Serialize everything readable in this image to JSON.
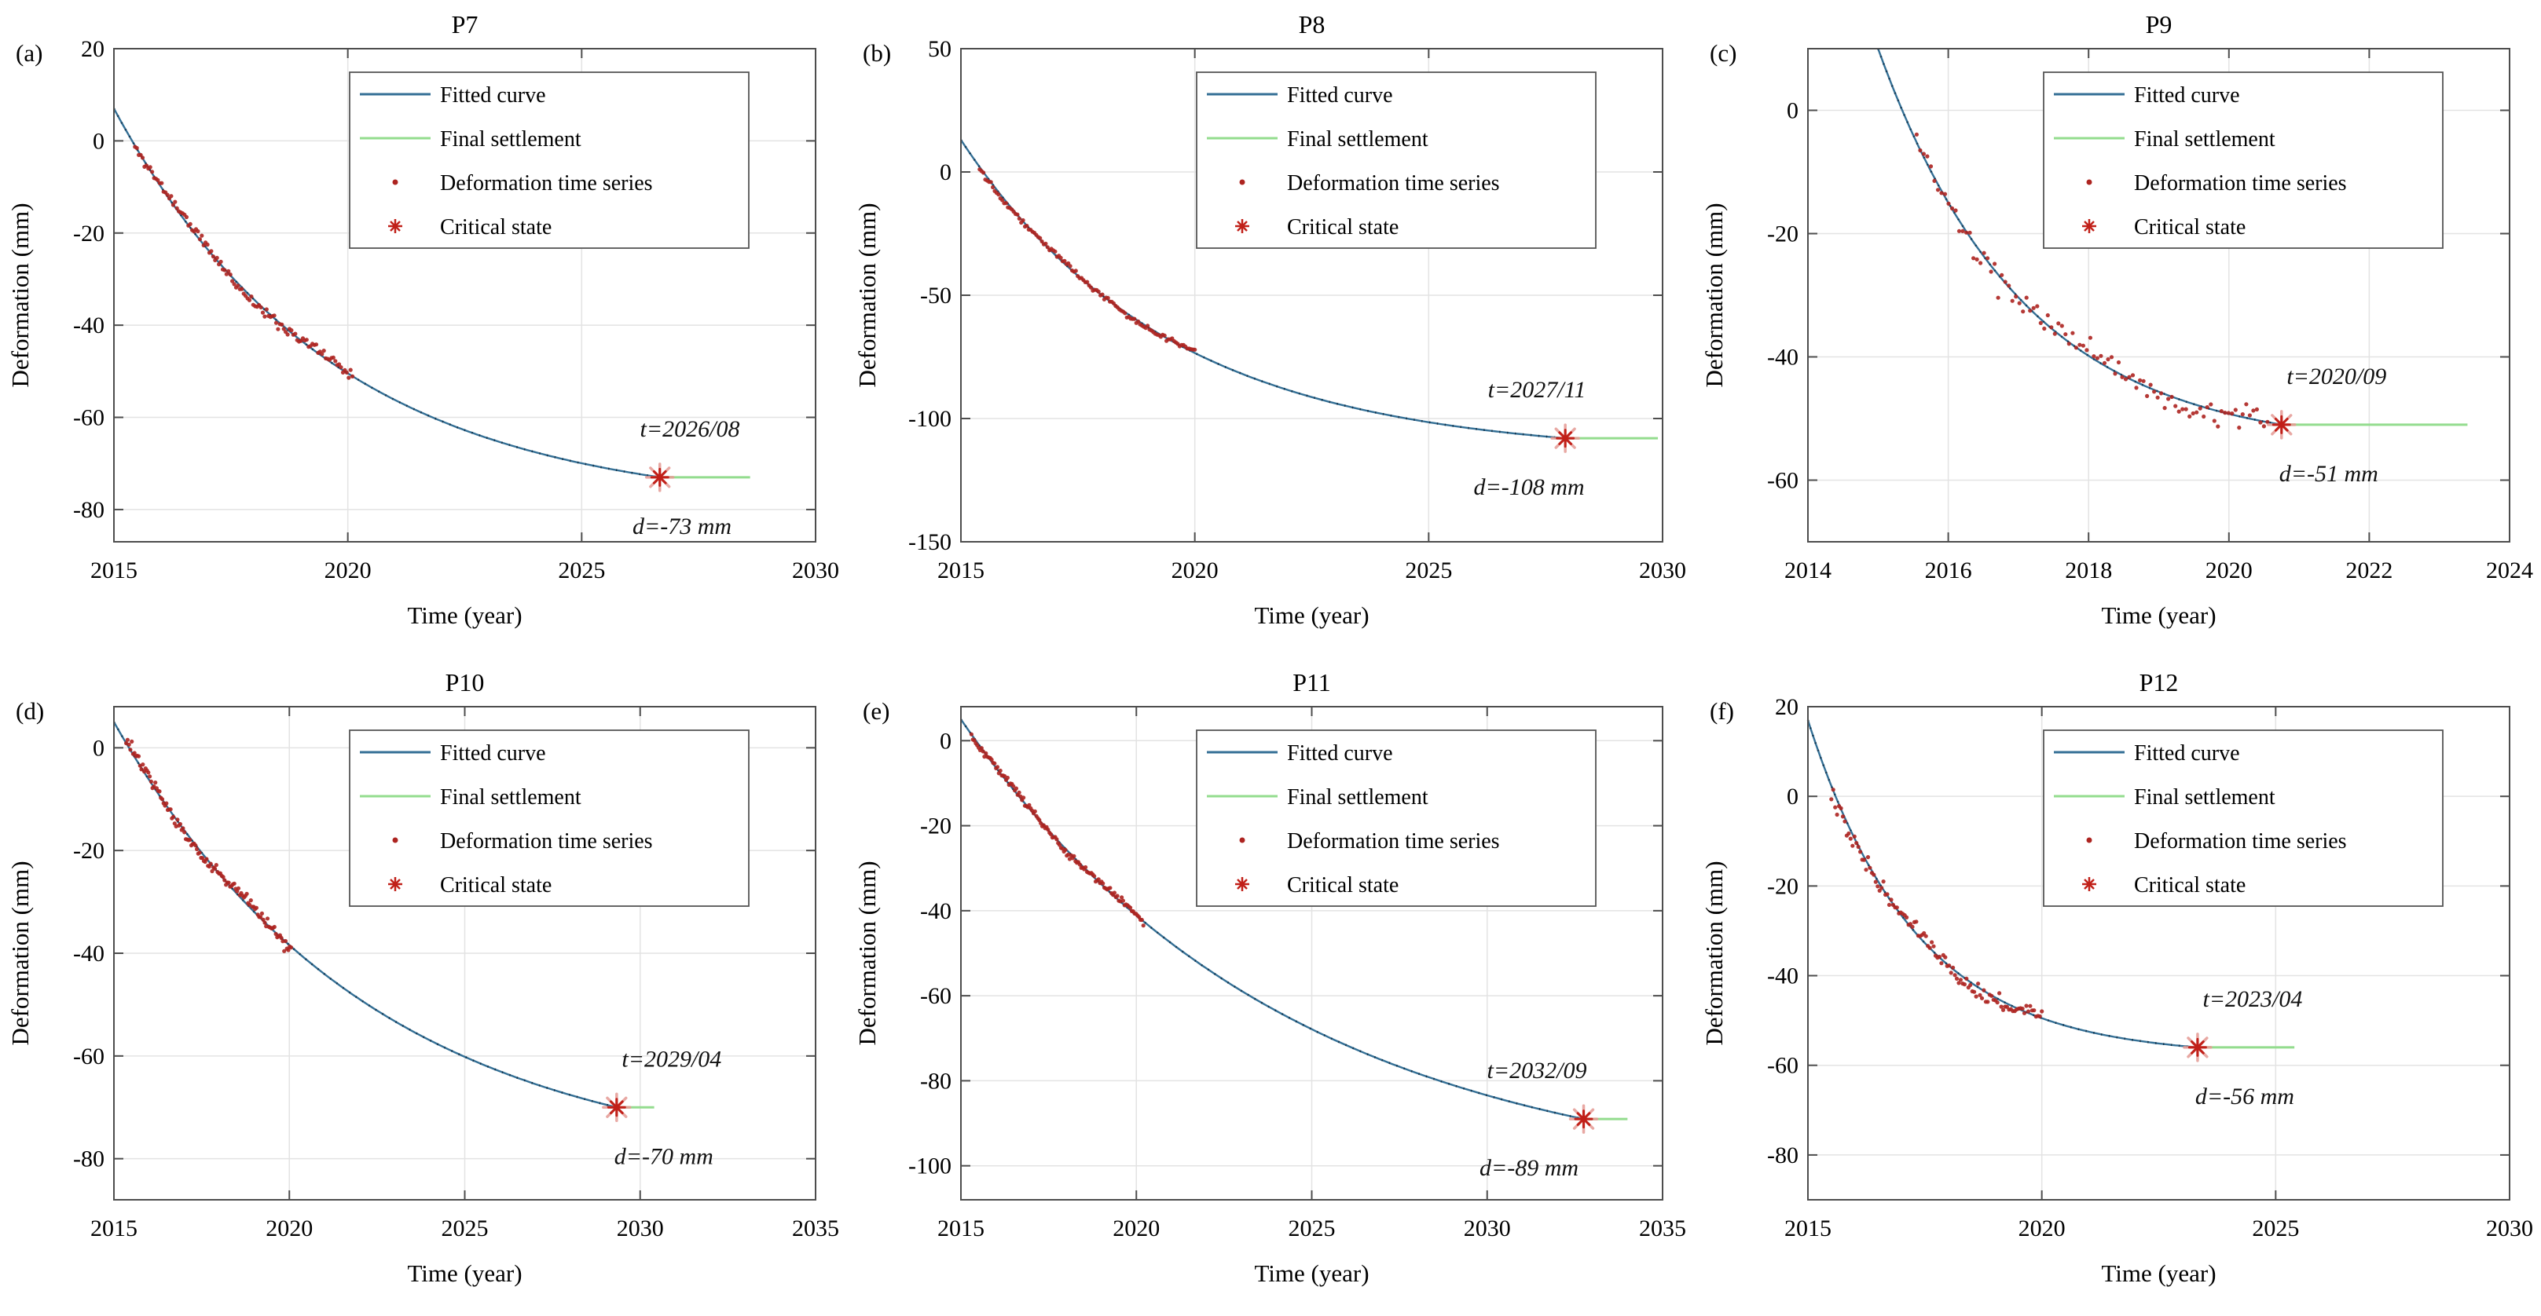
{
  "figure": {
    "description": "Six-panel settlement prediction figure: deformation time series, fitted curves, critical state and final settlement for monitoring points P7 to P12",
    "colors": {
      "fitted_curve": "#336f95",
      "fitted_curve_dots": "#14344d",
      "final_settlement": "#93dc8e",
      "deformation_points": "#ad2420",
      "critical_state_core": "#c12019",
      "critical_state_halo": "#e59a93",
      "grid": "#e3e3e3",
      "axis": "#4d4d4d",
      "background": "#ffffff"
    }
  },
  "legend": {
    "position": "top-right-inside",
    "items": [
      {
        "label": "Fitted curve",
        "marker": "line",
        "color": "#336f95"
      },
      {
        "label": "Final settlement",
        "marker": "line",
        "color": "#93dc8e"
      },
      {
        "label": "Deformation time series",
        "marker": "dot",
        "color": "#ad2420"
      },
      {
        "label": "Critical state",
        "marker": "asterisk",
        "color": "#c12019"
      }
    ]
  },
  "chart_data": [
    {
      "type": "line+scatter",
      "letter": "(a)",
      "title": "P7",
      "xlabel": "Time (year)",
      "ylabel": "Deformation (mm)",
      "xlim": [
        2015,
        2030
      ],
      "ylim": [
        -87,
        20
      ],
      "xticks": [
        2015,
        2020,
        2025,
        2030
      ],
      "yticks": [
        20,
        0,
        -20,
        -40,
        -60,
        -80
      ],
      "grid": true,
      "fitted_curve": {
        "x_start": 2015,
        "y_start": 7,
        "asymptote": -80
      },
      "critical_state": {
        "x": 2026.67,
        "y": -73
      },
      "final_settlement_line": {
        "y": -73,
        "x_end": 2028.6
      },
      "deformation_series": {
        "x_start": 2015.45,
        "x_end": 2020.1,
        "points": 115,
        "noise_mm": 1.3,
        "seed": 11
      },
      "annotations": {
        "t": "t=2026/08",
        "d": "d=-73 mm"
      }
    },
    {
      "type": "line+scatter",
      "letter": "(b)",
      "title": "P8",
      "xlabel": "Time (year)",
      "ylabel": "Deformation (mm)",
      "xlim": [
        2015,
        2030
      ],
      "ylim": [
        -150,
        50
      ],
      "xticks": [
        2015,
        2020,
        2025,
        2030
      ],
      "yticks": [
        50,
        0,
        -50,
        -100,
        -150
      ],
      "grid": true,
      "fitted_curve": {
        "x_start": 2015,
        "y_start": 13,
        "asymptote": -115
      },
      "critical_state": {
        "x": 2027.92,
        "y": -108
      },
      "final_settlement_line": {
        "y": -108,
        "x_end": 2029.9
      },
      "deformation_series": {
        "x_start": 2015.4,
        "x_end": 2020.0,
        "points": 115,
        "noise_mm": 1.2,
        "seed": 22
      },
      "annotations": {
        "t": "t=2027/11",
        "d": "d=-108 mm"
      }
    },
    {
      "type": "line+scatter",
      "letter": "(c)",
      "title": "P9",
      "xlabel": "Time (year)",
      "ylabel": "Deformation (mm)",
      "xlim": [
        2014,
        2024
      ],
      "ylim": [
        -70,
        10
      ],
      "xticks": [
        2014,
        2016,
        2018,
        2020,
        2022,
        2024
      ],
      "yticks": [
        0,
        -20,
        -40,
        -60
      ],
      "grid": true,
      "fitted_curve": {
        "x_start": 2015.0,
        "y_start": 10,
        "asymptote": -55
      },
      "critical_state": {
        "x": 2020.75,
        "y": -51
      },
      "final_settlement_line": {
        "y": -51,
        "x_end": 2023.4
      },
      "deformation_series": {
        "x_start": 2015.55,
        "x_end": 2020.55,
        "points": 100,
        "noise_mm": 2.2,
        "seed": 33
      },
      "annotations": {
        "t": "t=2020/09",
        "d": "d=-51 mm"
      }
    },
    {
      "type": "line+scatter",
      "letter": "(d)",
      "title": "P10",
      "xlabel": "Time (year)",
      "ylabel": "Deformation (mm)",
      "xlim": [
        2015,
        2035
      ],
      "ylim": [
        -88,
        8
      ],
      "xticks": [
        2015,
        2020,
        2025,
        2030,
        2035
      ],
      "yticks": [
        0,
        -20,
        -40,
        -60,
        -80
      ],
      "grid": true,
      "fitted_curve": {
        "x_start": 2015,
        "y_start": 5,
        "asymptote": -82
      },
      "critical_state": {
        "x": 2029.33,
        "y": -70
      },
      "final_settlement_line": {
        "y": -70,
        "x_end": 2030.4
      },
      "deformation_series": {
        "x_start": 2015.35,
        "x_end": 2020.05,
        "points": 120,
        "noise_mm": 1.4,
        "seed": 44
      },
      "annotations": {
        "t": "t=2029/04",
        "d": "d=-70 mm"
      }
    },
    {
      "type": "line+scatter",
      "letter": "(e)",
      "title": "P11",
      "xlabel": "Time (year)",
      "ylabel": "Deformation (mm)",
      "xlim": [
        2015,
        2035
      ],
      "ylim": [
        -108,
        8
      ],
      "xticks": [
        2015,
        2020,
        2025,
        2030,
        2035
      ],
      "yticks": [
        0,
        -20,
        -40,
        -60,
        -80,
        -100
      ],
      "grid": true,
      "fitted_curve": {
        "x_start": 2015,
        "y_start": 5,
        "asymptote": -105
      },
      "critical_state": {
        "x": 2032.75,
        "y": -89
      },
      "final_settlement_line": {
        "y": -89,
        "x_end": 2034.0
      },
      "deformation_series": {
        "x_start": 2015.3,
        "x_end": 2020.2,
        "points": 120,
        "noise_mm": 0.9,
        "seed": 55
      },
      "annotations": {
        "t": "t=2032/09",
        "d": "d=-89 mm"
      }
    },
    {
      "type": "line+scatter",
      "letter": "(f)",
      "title": "P12",
      "xlabel": "Time (year)",
      "ylabel": "Deformation (mm)",
      "xlim": [
        2015,
        2030
      ],
      "ylim": [
        -90,
        20
      ],
      "xticks": [
        2015,
        2020,
        2025,
        2030
      ],
      "yticks": [
        20,
        0,
        -20,
        -40,
        -60,
        -80
      ],
      "grid": true,
      "fitted_curve": {
        "x_start": 2015,
        "y_start": 17,
        "asymptote": -58
      },
      "critical_state": {
        "x": 2023.33,
        "y": -56
      },
      "final_settlement_line": {
        "y": -56,
        "x_end": 2025.4
      },
      "deformation_series": {
        "x_start": 2015.5,
        "x_end": 2020.0,
        "points": 110,
        "noise_mm": 2.0,
        "seed": 66
      },
      "annotations": {
        "t": "t=2023/04",
        "d": "d=-56 mm"
      }
    }
  ]
}
